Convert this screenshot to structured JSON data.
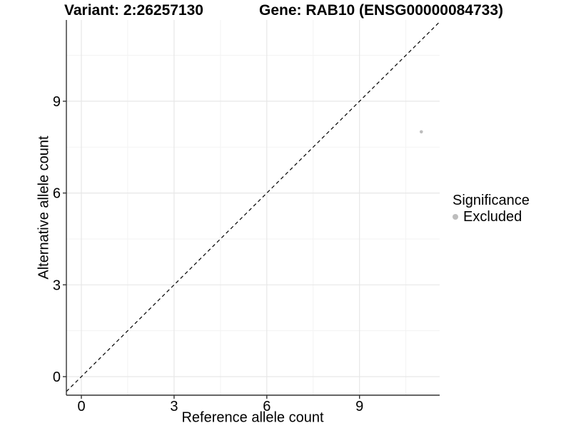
{
  "titles": {
    "variant": "Variant: 2:26257130",
    "gene": "Gene: RAB10 (ENSG00000084733)"
  },
  "axes": {
    "x_label": "Reference allele count",
    "y_label": "Alternative allele count"
  },
  "legend": {
    "title": "Significance",
    "items": [
      {
        "label": "Excluded",
        "color": "#bdbdbd"
      }
    ]
  },
  "chart_data": {
    "type": "scatter",
    "title": "Variant: 2:26257130 | Gene: RAB10 (ENSG00000084733)",
    "xlabel": "Reference allele count",
    "ylabel": "Alternative allele count",
    "x_ticks": [
      0,
      3,
      6,
      9
    ],
    "y_ticks": [
      0,
      3,
      6,
      9
    ],
    "x_minor_ticks": [
      1.5,
      4.5,
      7.5,
      10.5
    ],
    "y_minor_ticks": [
      1.5,
      4.5,
      7.5,
      10.5
    ],
    "xlim": [
      -0.49,
      11.6
    ],
    "ylim": [
      -0.61,
      11.66
    ],
    "grid": true,
    "legend_position": "right",
    "series": [
      {
        "name": "Excluded",
        "color": "#bdbdbd",
        "points": [
          {
            "x": 11,
            "y": 8
          }
        ]
      }
    ],
    "reference_line": {
      "type": "identity",
      "slope": 1,
      "intercept": 0,
      "style": "dashed",
      "color": "#000000"
    },
    "style": {
      "background": "#ffffff",
      "major_grid_color": "#e7e7e7",
      "minor_grid_color": "#f3f3f3",
      "axis_color": "#333333",
      "tick_label_color": "#000000",
      "point_radius": 2.3
    }
  }
}
